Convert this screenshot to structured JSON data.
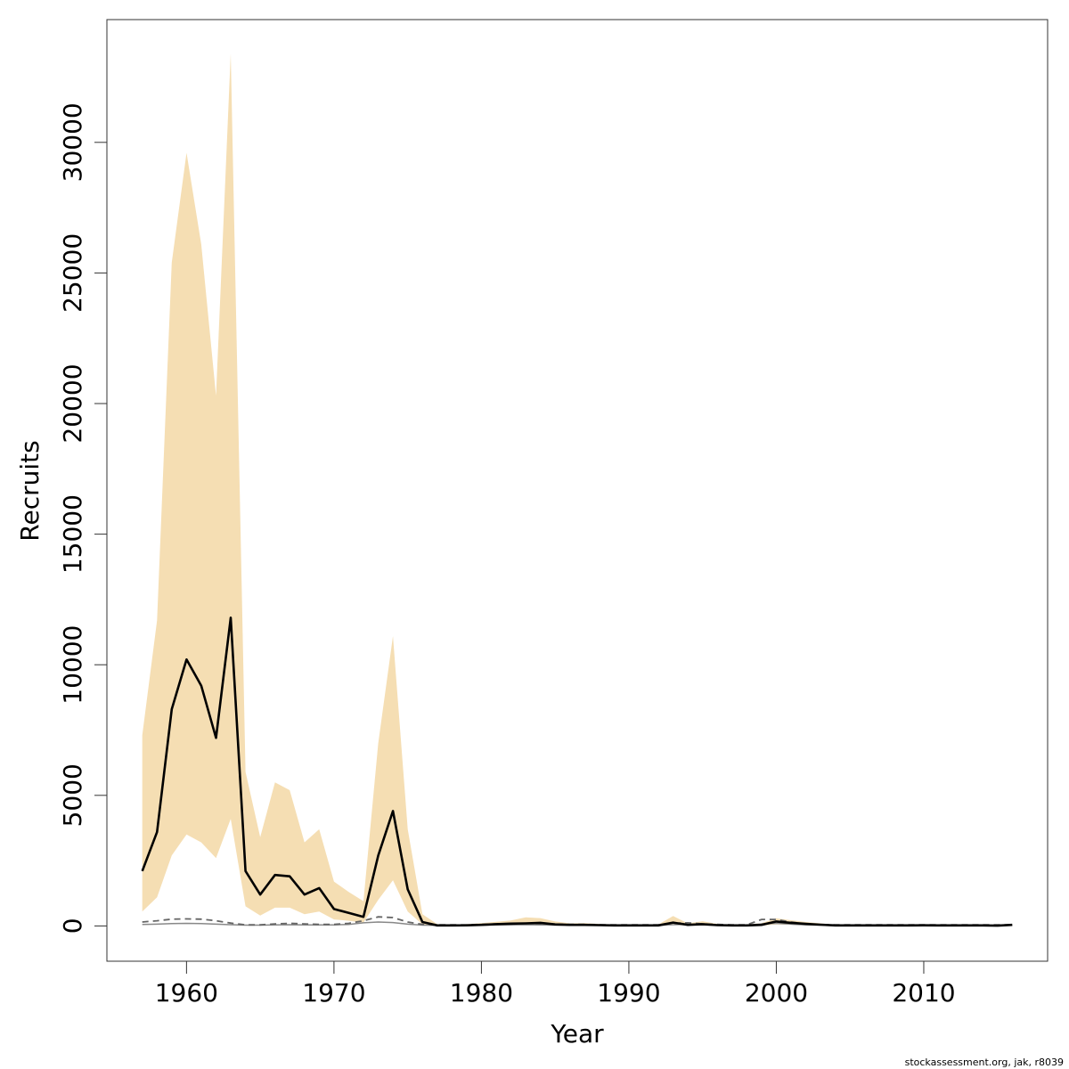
{
  "footer_text": "stockassessment.org, jak, r8039",
  "chart_data": {
    "type": "line",
    "title": "",
    "xlabel": "Year",
    "ylabel": "Recruits",
    "xlim": [
      1954.6,
      2018.4
    ],
    "ylim": [
      -1350,
      34700
    ],
    "x_ticks": [
      "1960",
      "1970",
      "1980",
      "1990",
      "2000",
      "2010"
    ],
    "y_ticks": [
      "0",
      "5000",
      "10000",
      "15000",
      "20000",
      "25000",
      "30000"
    ],
    "grid": false,
    "legend": "none",
    "colors": {
      "band": "#f5deb3",
      "estimate": "#000000",
      "dashed": "#666666",
      "solid_grey": "#888888"
    },
    "years": [
      1957,
      1958,
      1959,
      1960,
      1961,
      1962,
      1963,
      1964,
      1965,
      1966,
      1967,
      1968,
      1969,
      1970,
      1971,
      1972,
      1973,
      1974,
      1975,
      1976,
      1977,
      1978,
      1979,
      1980,
      1981,
      1982,
      1983,
      1984,
      1985,
      1986,
      1987,
      1988,
      1989,
      1990,
      1991,
      1992,
      1993,
      1994,
      1995,
      1996,
      1997,
      1998,
      1999,
      2000,
      2001,
      2002,
      2003,
      2004,
      2005,
      2006,
      2007,
      2008,
      2009,
      2010,
      2011,
      2012,
      2013,
      2014,
      2015,
      2016
    ],
    "series": [
      {
        "role": "estimate",
        "values": [
          2100,
          3600,
          8300,
          10200,
          9200,
          7200,
          11800,
          2100,
          1200,
          1950,
          1900,
          1200,
          1450,
          650,
          500,
          350,
          2700,
          4400,
          1400,
          150,
          20,
          20,
          25,
          40,
          70,
          90,
          100,
          120,
          60,
          40,
          40,
          30,
          20,
          20,
          20,
          20,
          130,
          40,
          70,
          30,
          20,
          20,
          40,
          170,
          120,
          80,
          50,
          20,
          20,
          20,
          20,
          20,
          20,
          25,
          20,
          20,
          20,
          20,
          10,
          40
        ]
      },
      {
        "role": "upper",
        "values": [
          7300,
          11700,
          25400,
          29600,
          26100,
          20300,
          33400,
          5900,
          3400,
          5500,
          5200,
          3200,
          3700,
          1700,
          1300,
          950,
          7000,
          11100,
          3700,
          450,
          70,
          60,
          70,
          110,
          160,
          210,
          330,
          300,
          170,
          100,
          110,
          80,
          55,
          50,
          50,
          60,
          380,
          100,
          180,
          80,
          50,
          60,
          110,
          290,
          220,
          150,
          100,
          50,
          50,
          50,
          45,
          45,
          45,
          60,
          45,
          45,
          45,
          45,
          30,
          60
        ]
      },
      {
        "role": "lower",
        "values": [
          550,
          1100,
          2700,
          3500,
          3200,
          2600,
          4100,
          750,
          400,
          700,
          700,
          450,
          550,
          250,
          200,
          130,
          1000,
          1750,
          550,
          60,
          8,
          8,
          10,
          15,
          30,
          35,
          40,
          45,
          20,
          15,
          15,
          10,
          8,
          8,
          8,
          8,
          45,
          15,
          25,
          10,
          8,
          8,
          15,
          60,
          45,
          30,
          20,
          8,
          8,
          8,
          8,
          8,
          8,
          10,
          8,
          8,
          8,
          8,
          4,
          20
        ]
      },
      {
        "role": "dashed",
        "values": [
          150,
          200,
          260,
          270,
          260,
          200,
          110,
          40,
          40,
          80,
          100,
          80,
          60,
          60,
          100,
          200,
          350,
          320,
          150,
          60,
          40,
          40,
          40,
          60,
          80,
          90,
          100,
          90,
          70,
          60,
          60,
          50,
          40,
          40,
          40,
          40,
          100,
          120,
          80,
          60,
          40,
          40,
          250,
          250,
          150,
          80,
          50,
          40,
          40,
          40,
          40,
          40,
          40,
          40,
          40,
          40,
          40,
          40,
          40,
          40
        ]
      },
      {
        "role": "solid-grey",
        "values": [
          60,
          70,
          90,
          100,
          90,
          70,
          50,
          30,
          30,
          40,
          50,
          40,
          40,
          40,
          60,
          120,
          150,
          130,
          70,
          30,
          20,
          20,
          20,
          30,
          40,
          40,
          50,
          40,
          30,
          30,
          30,
          25,
          20,
          20,
          20,
          20,
          50,
          60,
          40,
          30,
          20,
          20,
          80,
          100,
          70,
          40,
          30,
          20,
          20,
          20,
          20,
          20,
          20,
          20,
          20,
          20,
          20,
          20,
          20,
          20
        ]
      }
    ]
  }
}
